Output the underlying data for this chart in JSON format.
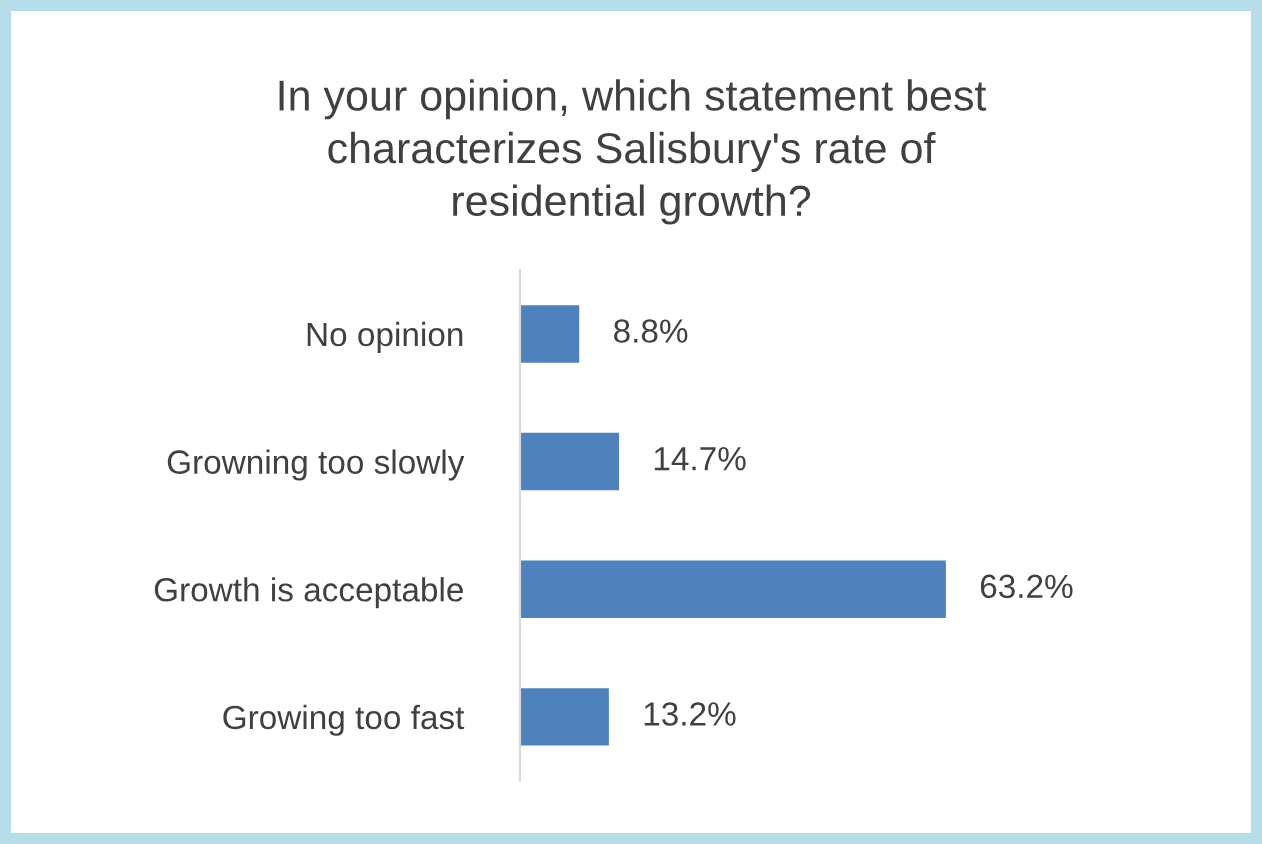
{
  "chart_data": {
    "type": "bar",
    "orientation": "horizontal",
    "title": "In your opinion, which statement best\ncharacterizes Salisbury's rate of\nresidential growth?",
    "categories": [
      "No opinion",
      "Growning too slowly",
      "Growth is acceptable",
      "Growing too fast"
    ],
    "values": [
      8.8,
      14.7,
      63.2,
      13.2
    ],
    "value_labels": [
      "8.8%",
      "14.7%",
      "63.2%",
      "13.2%"
    ],
    "color": "#4f81bd",
    "grid": false,
    "legend": false
  }
}
